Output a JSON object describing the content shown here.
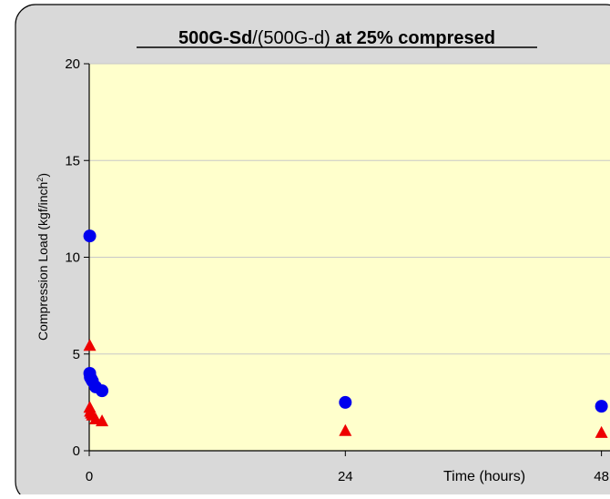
{
  "chart_data": {
    "type": "scatter",
    "title_parts": {
      "bold_a": "500G-Sd",
      "plain": "/(500G-d)",
      "bold_b": " at 25% compresed"
    },
    "ylabel_main": "Compression Load (kgf/inch",
    "ylabel_sup": "2",
    "ylabel_end": ")",
    "xlabel": "Time (hours)",
    "xlim": [
      0,
      48.8
    ],
    "ylim": [
      0,
      20
    ],
    "x_ticks": [
      {
        "value": 0,
        "label": "0"
      },
      {
        "value": 24,
        "label": "24"
      },
      {
        "value": 48,
        "label": "48"
      }
    ],
    "y_ticks": [
      {
        "value": 0,
        "label": "0"
      },
      {
        "value": 5,
        "label": "5"
      },
      {
        "value": 10,
        "label": "10"
      },
      {
        "value": 15,
        "label": "15"
      },
      {
        "value": 20,
        "label": "20"
      }
    ],
    "grid": true,
    "series": [
      {
        "marker": "circle",
        "color": "#0000ee",
        "points": [
          {
            "x": 0.05,
            "y": 11.1
          },
          {
            "x": 0.05,
            "y": 4.0
          },
          {
            "x": 0.1,
            "y": 3.8
          },
          {
            "x": 0.2,
            "y": 3.7
          },
          {
            "x": 0.3,
            "y": 3.6
          },
          {
            "x": 0.6,
            "y": 3.3
          },
          {
            "x": 1.2,
            "y": 3.1
          },
          {
            "x": 24,
            "y": 2.5
          },
          {
            "x": 48,
            "y": 2.3
          }
        ]
      },
      {
        "marker": "triangle",
        "color": "#ee0000",
        "points": [
          {
            "x": 0.05,
            "y": 5.4
          },
          {
            "x": 0.05,
            "y": 2.2
          },
          {
            "x": 0.1,
            "y": 2.0
          },
          {
            "x": 0.2,
            "y": 1.9
          },
          {
            "x": 0.3,
            "y": 1.8
          },
          {
            "x": 0.6,
            "y": 1.6
          },
          {
            "x": 1.2,
            "y": 1.5
          },
          {
            "x": 24,
            "y": 1.0
          },
          {
            "x": 48,
            "y": 0.9
          }
        ]
      }
    ],
    "colors": {
      "plot_bg": "#ffffcc",
      "frame_bg": "#d9d9d9",
      "axis": "#000000",
      "grid": "#c8c8c8"
    }
  }
}
